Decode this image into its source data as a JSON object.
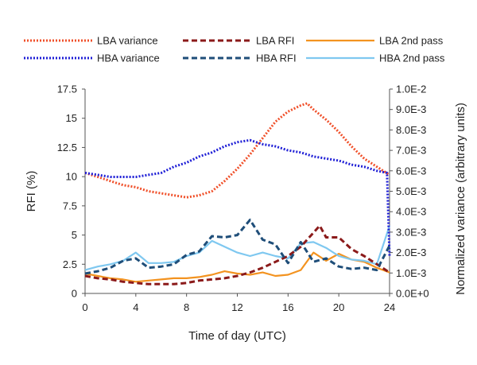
{
  "chart_data": {
    "type": "line",
    "title": "",
    "xlabel": "Time of day (UTC)",
    "ylabel": "RFI (%)",
    "y2label": "Normalized variance (arbitrary units)",
    "xlim": [
      0,
      24
    ],
    "ylim": [
      0,
      17.5
    ],
    "y2lim": [
      0,
      0.01
    ],
    "grid": false,
    "legend_position": "top",
    "x_ticks": [
      "0",
      "4",
      "8",
      "12",
      "16",
      "20",
      "24"
    ],
    "y_ticks": [
      "0",
      "2.5",
      "5",
      "7.5",
      "10",
      "12.5",
      "15",
      "17.5"
    ],
    "y2_ticks": [
      "0.0E+0",
      "1.0E-3",
      "2.0E-3",
      "3.0E-3",
      "4.0E-3",
      "5.0E-3",
      "6.0E-3",
      "7.0E-3",
      "8.0E-3",
      "9.0E-3",
      "1.0E-2"
    ],
    "series": [
      {
        "name": "LBA variance",
        "axis": "right",
        "color": "#f0502a",
        "style": "dotted",
        "x": [
          0,
          1,
          2,
          3,
          4,
          5,
          6,
          7,
          8,
          9,
          10,
          11,
          12,
          13,
          14,
          15,
          16,
          17,
          17.5,
          18,
          19,
          20,
          21,
          22,
          23,
          24
        ],
        "y": [
          0.0059,
          0.0057,
          0.0055,
          0.0053,
          0.0052,
          0.005,
          0.0049,
          0.0048,
          0.0047,
          0.0048,
          0.005,
          0.0055,
          0.0061,
          0.0068,
          0.0076,
          0.0084,
          0.0089,
          0.0092,
          0.0093,
          0.009,
          0.0085,
          0.0079,
          0.0072,
          0.0066,
          0.0062,
          0.0058
        ]
      },
      {
        "name": "LBA RFI",
        "axis": "left",
        "color": "#8b1a1a",
        "style": "dashed",
        "x": [
          0,
          1,
          2,
          3,
          4,
          5,
          6,
          7,
          8,
          9,
          10,
          11,
          12,
          13,
          14,
          15,
          16,
          17,
          18,
          18.5,
          19,
          20,
          21,
          22,
          23,
          24
        ],
        "y": [
          1.5,
          1.3,
          1.2,
          1.0,
          0.9,
          0.8,
          0.8,
          0.8,
          0.9,
          1.1,
          1.2,
          1.3,
          1.5,
          1.8,
          2.2,
          2.7,
          3.2,
          4.0,
          5.2,
          5.8,
          4.8,
          4.8,
          3.8,
          3.2,
          2.5,
          1.8
        ]
      },
      {
        "name": "LBA 2nd pass",
        "axis": "left",
        "color": "#f39320",
        "style": "solid",
        "x": [
          0,
          1,
          2,
          3,
          4,
          5,
          6,
          7,
          8,
          9,
          10,
          11,
          12,
          13,
          14,
          15,
          16,
          17,
          18,
          19,
          20,
          21,
          22,
          23,
          24
        ],
        "y": [
          1.7,
          1.5,
          1.3,
          1.2,
          1.0,
          1.1,
          1.2,
          1.3,
          1.3,
          1.4,
          1.6,
          1.9,
          1.7,
          1.6,
          1.8,
          1.5,
          1.6,
          2.0,
          3.5,
          2.8,
          3.4,
          2.9,
          2.7,
          2.2,
          1.8
        ]
      },
      {
        "name": "HBA variance",
        "axis": "right",
        "color": "#1f1fd6",
        "style": "dotted",
        "x": [
          0,
          1,
          2,
          3,
          4,
          5,
          6,
          7,
          8,
          9,
          10,
          11,
          12,
          13,
          14,
          15,
          16,
          17,
          18,
          19,
          20,
          21,
          22,
          23,
          23.8,
          24
        ],
        "y": [
          0.0059,
          0.0058,
          0.0057,
          0.0057,
          0.0057,
          0.0058,
          0.0059,
          0.0062,
          0.0064,
          0.0067,
          0.0069,
          0.0072,
          0.0074,
          0.0075,
          0.0073,
          0.0072,
          0.007,
          0.0069,
          0.0067,
          0.0066,
          0.0065,
          0.0063,
          0.0062,
          0.006,
          0.0059,
          0.0018
        ]
      },
      {
        "name": "HBA RFI",
        "axis": "left",
        "color": "#1f4e79",
        "style": "dashed",
        "x": [
          0,
          1,
          2,
          3,
          4,
          5,
          6,
          7,
          8,
          9,
          10,
          11,
          12,
          13,
          14,
          15,
          16,
          17,
          18,
          19,
          20,
          21,
          22,
          23,
          24
        ],
        "y": [
          1.7,
          1.9,
          2.2,
          2.8,
          3.0,
          2.2,
          2.3,
          2.5,
          3.3,
          3.6,
          4.9,
          4.8,
          5.0,
          6.3,
          4.6,
          4.2,
          2.6,
          4.4,
          2.7,
          3.0,
          2.3,
          2.1,
          2.2,
          2.0,
          4.1
        ]
      },
      {
        "name": "HBA 2nd pass",
        "axis": "left",
        "color": "#7fc8f0",
        "style": "solid",
        "x": [
          0,
          1,
          2,
          3,
          4,
          5,
          6,
          7,
          8,
          9,
          10,
          11,
          12,
          13,
          14,
          15,
          16,
          17,
          18,
          19,
          20,
          21,
          22,
          23,
          24
        ],
        "y": [
          2.0,
          2.3,
          2.5,
          2.8,
          3.5,
          2.6,
          2.6,
          2.7,
          3.2,
          3.5,
          4.5,
          4.0,
          3.5,
          3.2,
          3.5,
          3.2,
          3.0,
          4.3,
          4.4,
          3.9,
          3.2,
          2.9,
          2.8,
          2.5,
          5.8
        ]
      }
    ]
  }
}
